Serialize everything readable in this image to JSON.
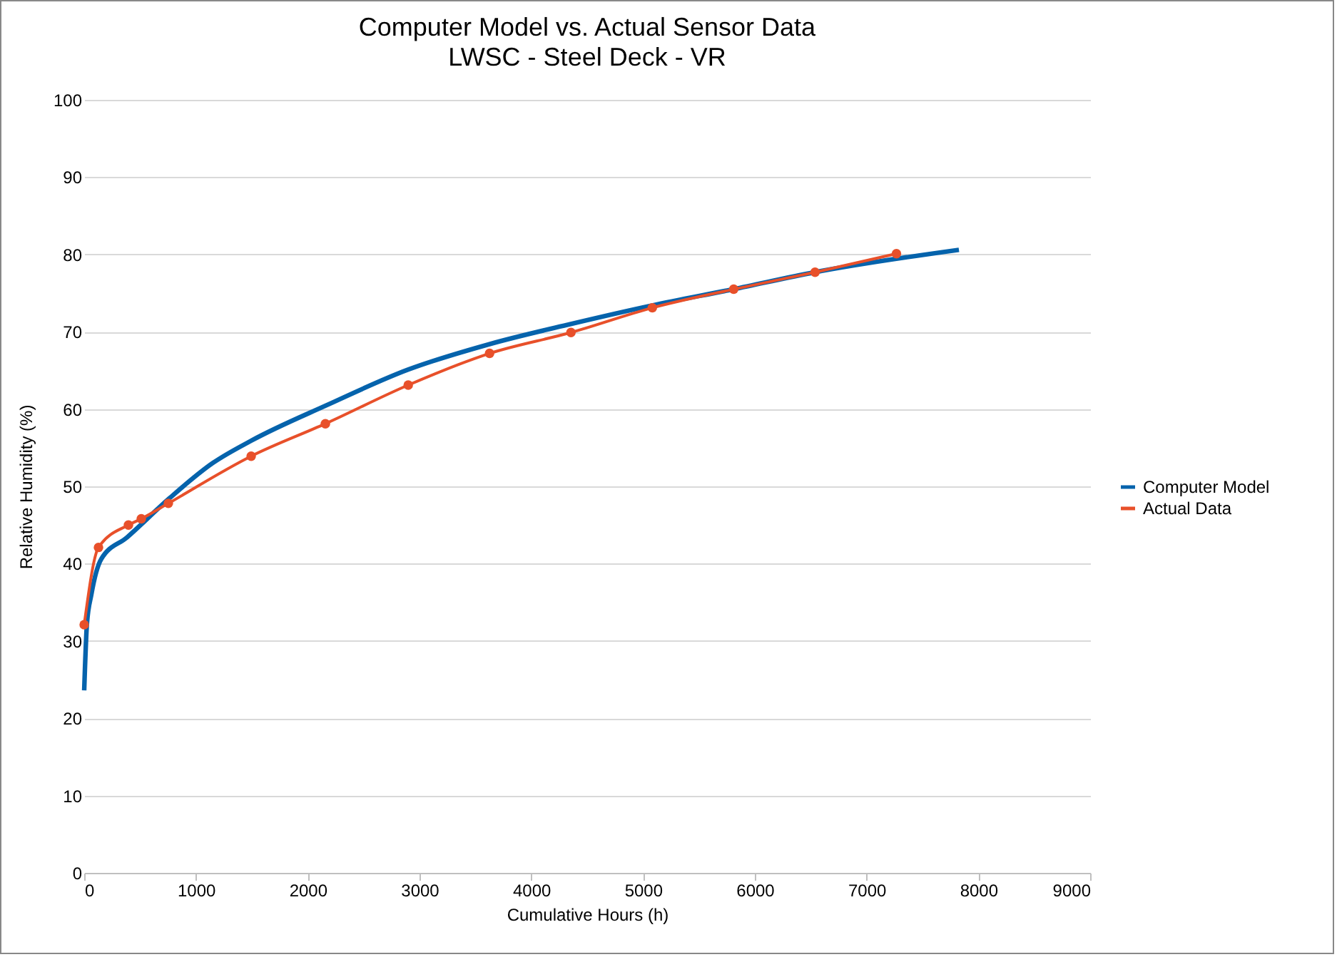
{
  "chart_data": {
    "type": "line",
    "title": "Computer Model vs. Actual Sensor Data",
    "subtitle": "LWSC - Steel Deck - VR",
    "xlabel": "Cumulative Hours (h)",
    "ylabel": "Relative Humidity (%)",
    "xlim": [
      0,
      9000
    ],
    "xticks": [
      0,
      1000,
      2000,
      3000,
      4000,
      5000,
      6000,
      7000,
      8000,
      9000
    ],
    "ylim": [
      0,
      100
    ],
    "yticks": [
      0,
      10,
      20,
      30,
      40,
      50,
      60,
      70,
      80,
      90,
      100
    ],
    "grid": "y",
    "legend": "right",
    "series": [
      {
        "name": "Computer Model",
        "color": "#0563ac",
        "marker": "none",
        "x": [
          0,
          25,
          64,
          153,
          383,
          766,
          1149,
          1494,
          2170,
          2898,
          3626,
          4353,
          5081,
          5809,
          6537,
          7826
        ],
        "values": [
          23.6,
          32.3,
          36,
          40.6,
          43.4,
          48.5,
          53,
          55.9,
          60.5,
          65.1,
          68.4,
          71.0,
          73.4,
          75.5,
          77.7,
          80.6
        ]
      },
      {
        "name": "Actual Data",
        "color": "#e8502a",
        "marker": "circle",
        "x": [
          0,
          128,
          396,
          511,
          753,
          1494,
          2158,
          2899,
          3627,
          4355,
          5083,
          5811,
          6539,
          7267
        ],
        "values": [
          32.1,
          42.1,
          45.0,
          45.8,
          47.8,
          53.9,
          58.1,
          63.1,
          67.2,
          69.9,
          73.1,
          75.5,
          77.7,
          80.1
        ]
      }
    ]
  }
}
